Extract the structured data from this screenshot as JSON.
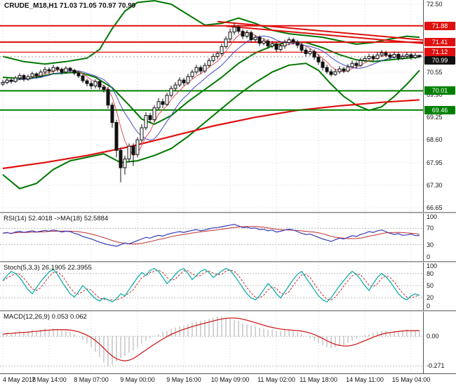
{
  "main": {
    "title": "CRUDE_M18,H1 71.03 71.05 70.97 70.99"
  },
  "rsi": {
    "label": "RSI(14) 52.4018  ->MA(18) 52.5884"
  },
  "stoch": {
    "label": "Stoch(5,3,3) 26.1905 22.3955"
  },
  "macd": {
    "label": "MACD(12,26,9) 0.053 0.062"
  },
  "time_axis": {
    "ticks": [
      {
        "label": "4 May 2018",
        "bar": 0
      },
      {
        "label": "7 May 14:00",
        "bar": 11
      },
      {
        "label": "8 May 07:00",
        "bar": 21
      },
      {
        "label": "9 May 00:00",
        "bar": 32
      },
      {
        "label": "9 May 16:00",
        "bar": 43
      },
      {
        "label": "10 May 09:00",
        "bar": 54
      },
      {
        "label": "11 May 02:00",
        "bar": 65
      },
      {
        "label": "11 May 18:00",
        "bar": 75
      },
      {
        "label": "14 May 11:00",
        "bar": 86
      },
      {
        "label": "15 May 04:00",
        "bar": 97
      }
    ]
  },
  "chart_data": {
    "type": "candlestick",
    "symbol": "CRUDE_M18",
    "timeframe": "H1",
    "last_ohlc": {
      "open": 71.03,
      "high": 71.05,
      "low": 70.97,
      "close": 70.99
    },
    "price_ylim": [
      66.65,
      72.5
    ],
    "price_axis_ticks": [
      72.5,
      70.55,
      69.9,
      69.25,
      68.6,
      67.95,
      67.3,
      66.65
    ],
    "levels": [
      {
        "value": 71.88,
        "color": "#e01010",
        "width": 2,
        "tag": "71.88"
      },
      {
        "value": 71.41,
        "color": "#e01010",
        "width": 2,
        "tag": "71.41"
      },
      {
        "value": 71.12,
        "color": "#e01010",
        "width": 1.3,
        "tag": "71.12"
      },
      {
        "value": 70.99,
        "color": "#999999",
        "width": 0,
        "tag": "70.99",
        "tag_bg": "#111111"
      },
      {
        "value": 70.01,
        "color": "#008000",
        "width": 2,
        "tag": "70.01"
      },
      {
        "value": 69.46,
        "color": "#008000",
        "width": 2,
        "tag": "69.46"
      }
    ],
    "candles": {
      "closes": [
        70.25,
        70.32,
        70.28,
        70.38,
        70.45,
        70.35,
        70.42,
        70.5,
        70.44,
        70.55,
        70.62,
        70.58,
        70.68,
        70.63,
        70.55,
        70.66,
        70.6,
        70.52,
        70.44,
        70.3,
        70.22,
        70.15,
        70.28,
        70.12,
        70.05,
        69.6,
        69.1,
        68.3,
        67.8,
        68.05,
        68.42,
        68.18,
        68.6,
        68.95,
        69.3,
        69.18,
        69.52,
        69.7,
        69.62,
        69.88,
        70.08,
        70.18,
        70.32,
        70.24,
        70.42,
        70.55,
        70.68,
        70.58,
        70.74,
        70.88,
        71.0,
        71.08,
        71.28,
        71.5,
        71.7,
        71.84,
        71.72,
        71.58,
        71.68,
        71.48,
        71.55,
        71.38,
        71.44,
        71.3,
        71.36,
        71.2,
        71.3,
        71.4,
        71.48,
        71.42,
        71.32,
        71.18,
        71.08,
        71.14,
        70.98,
        70.84,
        70.68,
        70.56,
        70.48,
        70.56,
        70.64,
        70.58,
        70.7,
        70.8,
        70.74,
        70.88,
        70.94,
        71.0,
        70.94,
        71.04,
        71.1,
        71.04,
        70.98,
        71.06,
        70.95,
        71.0,
        71.05,
        70.97,
        71.03,
        70.99
      ],
      "highs": [
        70.33,
        70.38,
        70.36,
        70.44,
        70.52,
        70.5,
        70.48,
        70.56,
        70.54,
        70.62,
        70.7,
        70.68,
        70.76,
        70.72,
        70.68,
        70.72,
        70.7,
        70.64,
        70.58,
        70.5,
        70.36,
        70.3,
        70.34,
        70.34,
        70.18,
        70.12,
        69.68,
        69.18,
        68.38,
        68.15,
        68.5,
        68.5,
        68.68,
        69.05,
        69.4,
        69.38,
        69.6,
        69.8,
        69.78,
        69.95,
        70.16,
        70.26,
        70.4,
        70.38,
        70.5,
        70.62,
        70.76,
        70.74,
        70.82,
        70.95,
        71.08,
        71.15,
        71.36,
        71.58,
        71.8,
        71.95,
        71.9,
        71.78,
        71.76,
        71.74,
        71.62,
        71.6,
        71.52,
        71.5,
        71.44,
        71.42,
        71.38,
        71.48,
        71.55,
        71.54,
        71.48,
        71.38,
        71.26,
        71.22,
        71.2,
        71.06,
        70.92,
        70.76,
        70.64,
        70.64,
        70.72,
        70.7,
        70.78,
        70.88,
        70.86,
        70.96,
        71.02,
        71.08,
        71.06,
        71.12,
        71.18,
        71.16,
        71.1,
        71.14,
        71.12,
        71.08,
        71.12,
        71.1,
        71.1,
        71.05
      ],
      "lows": [
        70.15,
        70.2,
        70.22,
        70.24,
        70.32,
        70.28,
        70.3,
        70.36,
        70.38,
        70.4,
        70.48,
        70.5,
        70.52,
        70.56,
        70.48,
        70.5,
        70.54,
        70.46,
        70.38,
        70.24,
        70.14,
        70.06,
        70.08,
        70.04,
        69.96,
        69.5,
        68.95,
        68.1,
        67.38,
        67.6,
        67.95,
        67.85,
        68.1,
        68.52,
        68.88,
        69.08,
        69.12,
        69.45,
        69.52,
        69.58,
        69.82,
        70.0,
        70.12,
        70.16,
        70.18,
        70.36,
        70.48,
        70.5,
        70.52,
        70.68,
        70.82,
        70.92,
        71.02,
        71.22,
        71.42,
        71.62,
        71.65,
        71.5,
        71.52,
        71.4,
        71.42,
        71.3,
        71.32,
        71.22,
        71.24,
        71.12,
        71.14,
        71.22,
        71.32,
        71.34,
        71.24,
        71.1,
        71.0,
        71.02,
        70.9,
        70.76,
        70.6,
        70.5,
        70.42,
        70.44,
        70.5,
        70.52,
        70.54,
        70.68,
        70.66,
        70.7,
        70.84,
        70.88,
        70.86,
        70.9,
        70.98,
        70.98,
        70.92,
        70.94,
        70.88,
        70.9,
        70.94,
        70.9,
        70.92,
        70.97
      ]
    },
    "overlays": {
      "bb_upper": [
        [
          0,
          71.0
        ],
        [
          5,
          70.85
        ],
        [
          10,
          70.78
        ],
        [
          15,
          70.85
        ],
        [
          20,
          70.95
        ],
        [
          23,
          71.2
        ],
        [
          26,
          71.8
        ],
        [
          29,
          72.3
        ],
        [
          32,
          72.55
        ],
        [
          36,
          72.6
        ],
        [
          40,
          72.5
        ],
        [
          44,
          72.2
        ],
        [
          48,
          71.9
        ],
        [
          52,
          71.95
        ],
        [
          56,
          72.1
        ],
        [
          60,
          71.95
        ],
        [
          64,
          71.75
        ],
        [
          68,
          71.65
        ],
        [
          72,
          71.6
        ],
        [
          76,
          71.55
        ],
        [
          80,
          71.45
        ],
        [
          84,
          71.35
        ],
        [
          88,
          71.4
        ],
        [
          92,
          71.5
        ],
        [
          96,
          71.58
        ],
        [
          99,
          71.55
        ]
      ],
      "bb_mid": [
        [
          0,
          70.4
        ],
        [
          6,
          70.35
        ],
        [
          12,
          70.5
        ],
        [
          18,
          70.55
        ],
        [
          22,
          70.4
        ],
        [
          26,
          70.1
        ],
        [
          30,
          69.6
        ],
        [
          33,
          69.2
        ],
        [
          36,
          69.05
        ],
        [
          40,
          69.3
        ],
        [
          44,
          69.7
        ],
        [
          48,
          70.05
        ],
        [
          52,
          70.4
        ],
        [
          56,
          70.8
        ],
        [
          60,
          71.1
        ],
        [
          64,
          71.3
        ],
        [
          68,
          71.42
        ],
        [
          72,
          71.4
        ],
        [
          76,
          71.25
        ],
        [
          80,
          71.05
        ],
        [
          84,
          70.9
        ],
        [
          88,
          70.85
        ],
        [
          92,
          70.9
        ],
        [
          96,
          70.95
        ],
        [
          99,
          70.98
        ]
      ],
      "bb_lower": [
        [
          0,
          67.6
        ],
        [
          4,
          67.2
        ],
        [
          8,
          67.35
        ],
        [
          12,
          67.75
        ],
        [
          16,
          68.0
        ],
        [
          20,
          68.1
        ],
        [
          24,
          68.2
        ],
        [
          28,
          67.95
        ],
        [
          32,
          68.0
        ],
        [
          36,
          68.15
        ],
        [
          40,
          68.35
        ],
        [
          44,
          68.7
        ],
        [
          48,
          69.1
        ],
        [
          52,
          69.5
        ],
        [
          56,
          69.9
        ],
        [
          60,
          70.25
        ],
        [
          64,
          70.55
        ],
        [
          68,
          70.75
        ],
        [
          72,
          70.8
        ],
        [
          75,
          70.6
        ],
        [
          78,
          70.2
        ],
        [
          81,
          69.85
        ],
        [
          84,
          69.6
        ],
        [
          87,
          69.45
        ],
        [
          90,
          69.55
        ],
        [
          93,
          69.85
        ],
        [
          96,
          70.2
        ],
        [
          99,
          70.6
        ]
      ],
      "long_ma": [
        [
          0,
          67.78
        ],
        [
          10,
          67.95
        ],
        [
          20,
          68.15
        ],
        [
          30,
          68.4
        ],
        [
          40,
          68.7
        ],
        [
          50,
          69.0
        ],
        [
          60,
          69.25
        ],
        [
          70,
          69.45
        ],
        [
          80,
          69.58
        ],
        [
          90,
          69.68
        ],
        [
          99,
          69.75
        ]
      ],
      "trendlines": [
        [
          [
            51,
            72.0
          ],
          [
            100,
            71.47
          ]
        ],
        [
          [
            53,
            71.87
          ],
          [
            100,
            71.37
          ]
        ]
      ]
    },
    "indicators": {
      "rsi": {
        "ylim": [
          0,
          100
        ],
        "axis": [
          100,
          70,
          30,
          0
        ],
        "grid": [
          70,
          30
        ],
        "values": [
          58,
          60,
          57,
          61,
          63,
          60,
          62,
          64,
          61,
          63,
          65,
          63,
          66,
          64,
          61,
          63,
          62,
          58,
          55,
          50,
          47,
          44,
          40,
          36,
          33,
          30,
          28,
          26,
          30,
          34,
          32,
          36,
          40,
          44,
          48,
          46,
          50,
          53,
          51,
          55,
          58,
          60,
          62,
          60,
          63,
          65,
          67,
          64,
          66,
          69,
          71,
          72,
          74,
          76,
          78,
          80,
          76,
          72,
          73,
          70,
          71,
          67,
          68,
          64,
          66,
          61,
          63,
          66,
          68,
          66,
          62,
          58,
          55,
          56,
          52,
          48,
          44,
          41,
          38,
          42,
          46,
          44,
          48,
          52,
          50,
          55,
          58,
          62,
          60,
          64,
          66,
          62,
          58,
          55,
          57,
          53,
          54,
          56,
          52,
          52.4
        ]
      },
      "stoch": {
        "ylim": [
          0,
          100
        ],
        "axis": [
          100,
          80,
          50,
          20,
          0
        ],
        "grid": [
          80,
          50,
          20
        ],
        "values": [
          62,
          75,
          85,
          80,
          70,
          55,
          40,
          30,
          45,
          60,
          72,
          84,
          90,
          78,
          60,
          45,
          30,
          22,
          35,
          50,
          40,
          28,
          18,
          12,
          20,
          15,
          10,
          18,
          30,
          25,
          40,
          55,
          70,
          82,
          75,
          88,
          92,
          85,
          70,
          55,
          65,
          78,
          88,
          92,
          80,
          65,
          75,
          85,
          90,
          82,
          70,
          78,
          86,
          92,
          88,
          75,
          60,
          45,
          30,
          20,
          15,
          25,
          40,
          55,
          45,
          30,
          20,
          35,
          50,
          65,
          78,
          85,
          70,
          55,
          40,
          25,
          15,
          10,
          20,
          35,
          50,
          62,
          75,
          85,
          78,
          65,
          50,
          38,
          55,
          70,
          80,
          72,
          60,
          45,
          30,
          20,
          15,
          25,
          30,
          26
        ]
      },
      "macd": {
        "ylim": [
          -0.3,
          0.2
        ],
        "axis": [
          {
            "label": "0.00",
            "value": 0
          },
          {
            "label": "-0.271",
            "value": -0.271
          }
        ],
        "grid": [
          0,
          -0.271
        ],
        "hist": [
          0.02,
          0.03,
          0.03,
          0.04,
          0.05,
          0.04,
          0.05,
          0.06,
          0.05,
          0.06,
          0.07,
          0.06,
          0.07,
          0.06,
          0.05,
          0.05,
          0.04,
          0.02,
          0.0,
          -0.03,
          -0.06,
          -0.1,
          -0.14,
          -0.19,
          -0.24,
          -0.27,
          -0.26,
          -0.23,
          -0.2,
          -0.18,
          -0.15,
          -0.13,
          -0.1,
          -0.07,
          -0.04,
          -0.02,
          0.0,
          0.02,
          0.04,
          0.05,
          0.07,
          0.08,
          0.09,
          0.1,
          0.11,
          0.12,
          0.13,
          0.14,
          0.15,
          0.16,
          0.17,
          0.18,
          0.18,
          0.17,
          0.16,
          0.15,
          0.14,
          0.12,
          0.11,
          0.1,
          0.09,
          0.08,
          0.07,
          0.06,
          0.06,
          0.05,
          0.05,
          0.06,
          0.06,
          0.05,
          0.04,
          0.02,
          0.0,
          -0.02,
          -0.04,
          -0.06,
          -0.08,
          -0.1,
          -0.11,
          -0.1,
          -0.09,
          -0.08,
          -0.06,
          -0.04,
          -0.02,
          0.0,
          0.01,
          0.02,
          0.03,
          0.04,
          0.05,
          0.05,
          0.04,
          0.05,
          0.05,
          0.06,
          0.06,
          0.05,
          0.05,
          0.05
        ]
      }
    }
  }
}
